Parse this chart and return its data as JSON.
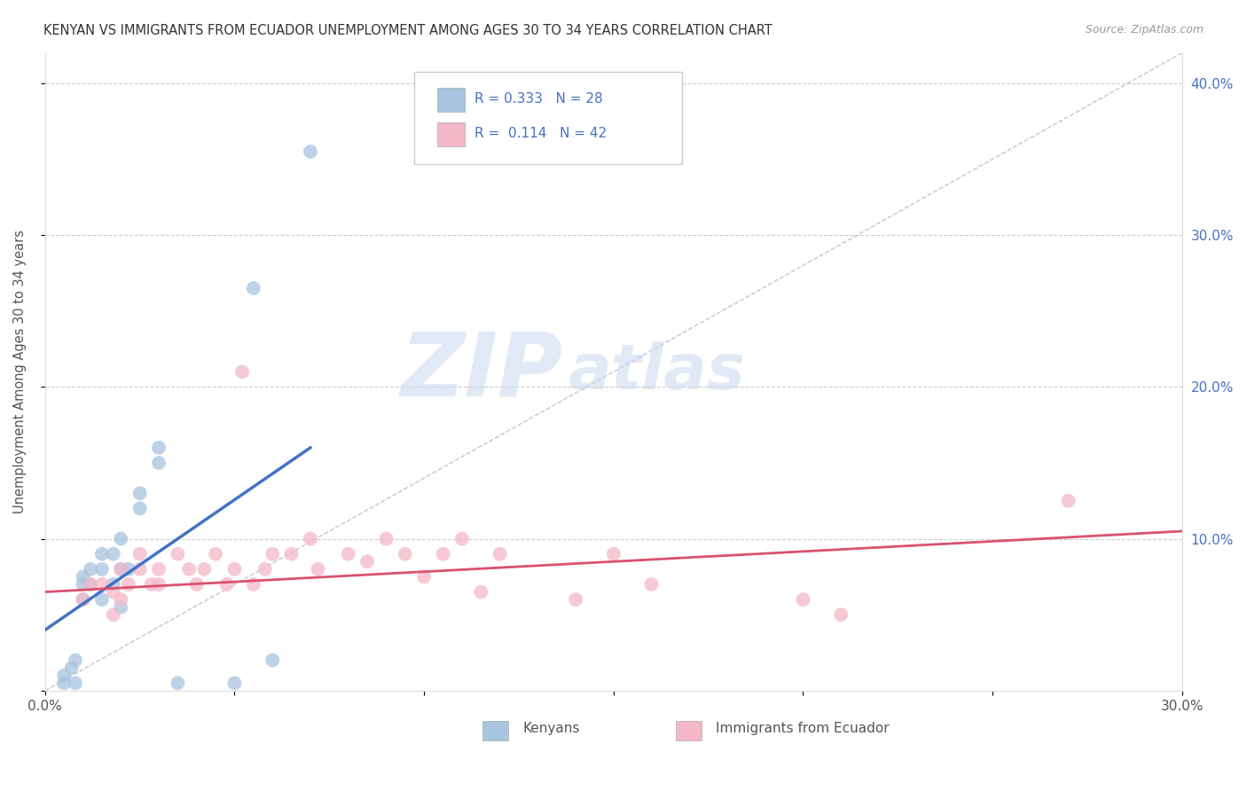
{
  "title": "KENYAN VS IMMIGRANTS FROM ECUADOR UNEMPLOYMENT AMONG AGES 30 TO 34 YEARS CORRELATION CHART",
  "source": "Source: ZipAtlas.com",
  "ylabel": "Unemployment Among Ages 30 to 34 years",
  "xlim": [
    0.0,
    0.3
  ],
  "ylim": [
    0.0,
    0.42
  ],
  "kenyan_R": "0.333",
  "kenyan_N": "28",
  "ecuador_R": "0.114",
  "ecuador_N": "42",
  "kenyan_color": "#a8c4e0",
  "ecuador_color": "#f4b8c8",
  "kenyan_line_color": "#4472c4",
  "ecuador_line_color": "#d9526e",
  "diagonal_color": "#b0b8c8",
  "watermark_zip": "ZIP",
  "watermark_atlas": "atlas",
  "kenyan_scatter": [
    [
      0.005,
      0.005
    ],
    [
      0.005,
      0.01
    ],
    [
      0.007,
      0.015
    ],
    [
      0.008,
      0.02
    ],
    [
      0.008,
      0.005
    ],
    [
      0.01,
      0.06
    ],
    [
      0.01,
      0.07
    ],
    [
      0.01,
      0.075
    ],
    [
      0.012,
      0.07
    ],
    [
      0.012,
      0.08
    ],
    [
      0.015,
      0.08
    ],
    [
      0.015,
      0.09
    ],
    [
      0.015,
      0.06
    ],
    [
      0.018,
      0.09
    ],
    [
      0.018,
      0.07
    ],
    [
      0.02,
      0.1
    ],
    [
      0.02,
      0.08
    ],
    [
      0.02,
      0.055
    ],
    [
      0.022,
      0.08
    ],
    [
      0.025,
      0.12
    ],
    [
      0.025,
      0.13
    ],
    [
      0.03,
      0.16
    ],
    [
      0.03,
      0.15
    ],
    [
      0.035,
      0.005
    ],
    [
      0.05,
      0.005
    ],
    [
      0.055,
      0.265
    ],
    [
      0.07,
      0.355
    ],
    [
      0.06,
      0.02
    ]
  ],
  "ecuador_scatter": [
    [
      0.01,
      0.06
    ],
    [
      0.012,
      0.07
    ],
    [
      0.015,
      0.07
    ],
    [
      0.018,
      0.065
    ],
    [
      0.018,
      0.05
    ],
    [
      0.02,
      0.08
    ],
    [
      0.02,
      0.06
    ],
    [
      0.022,
      0.07
    ],
    [
      0.025,
      0.08
    ],
    [
      0.025,
      0.09
    ],
    [
      0.028,
      0.07
    ],
    [
      0.03,
      0.08
    ],
    [
      0.03,
      0.07
    ],
    [
      0.035,
      0.09
    ],
    [
      0.038,
      0.08
    ],
    [
      0.04,
      0.07
    ],
    [
      0.042,
      0.08
    ],
    [
      0.045,
      0.09
    ],
    [
      0.048,
      0.07
    ],
    [
      0.05,
      0.08
    ],
    [
      0.052,
      0.21
    ],
    [
      0.055,
      0.07
    ],
    [
      0.058,
      0.08
    ],
    [
      0.06,
      0.09
    ],
    [
      0.065,
      0.09
    ],
    [
      0.07,
      0.1
    ],
    [
      0.072,
      0.08
    ],
    [
      0.08,
      0.09
    ],
    [
      0.085,
      0.085
    ],
    [
      0.09,
      0.1
    ],
    [
      0.095,
      0.09
    ],
    [
      0.1,
      0.075
    ],
    [
      0.105,
      0.09
    ],
    [
      0.11,
      0.1
    ],
    [
      0.115,
      0.065
    ],
    [
      0.12,
      0.09
    ],
    [
      0.14,
      0.06
    ],
    [
      0.15,
      0.09
    ],
    [
      0.16,
      0.07
    ],
    [
      0.2,
      0.06
    ],
    [
      0.21,
      0.05
    ],
    [
      0.27,
      0.125
    ]
  ],
  "kenyan_line_x": [
    0.0,
    0.07
  ],
  "kenyan_line_y": [
    0.04,
    0.16
  ],
  "ecuador_line_x": [
    0.0,
    0.3
  ],
  "ecuador_line_y": [
    0.065,
    0.105
  ]
}
